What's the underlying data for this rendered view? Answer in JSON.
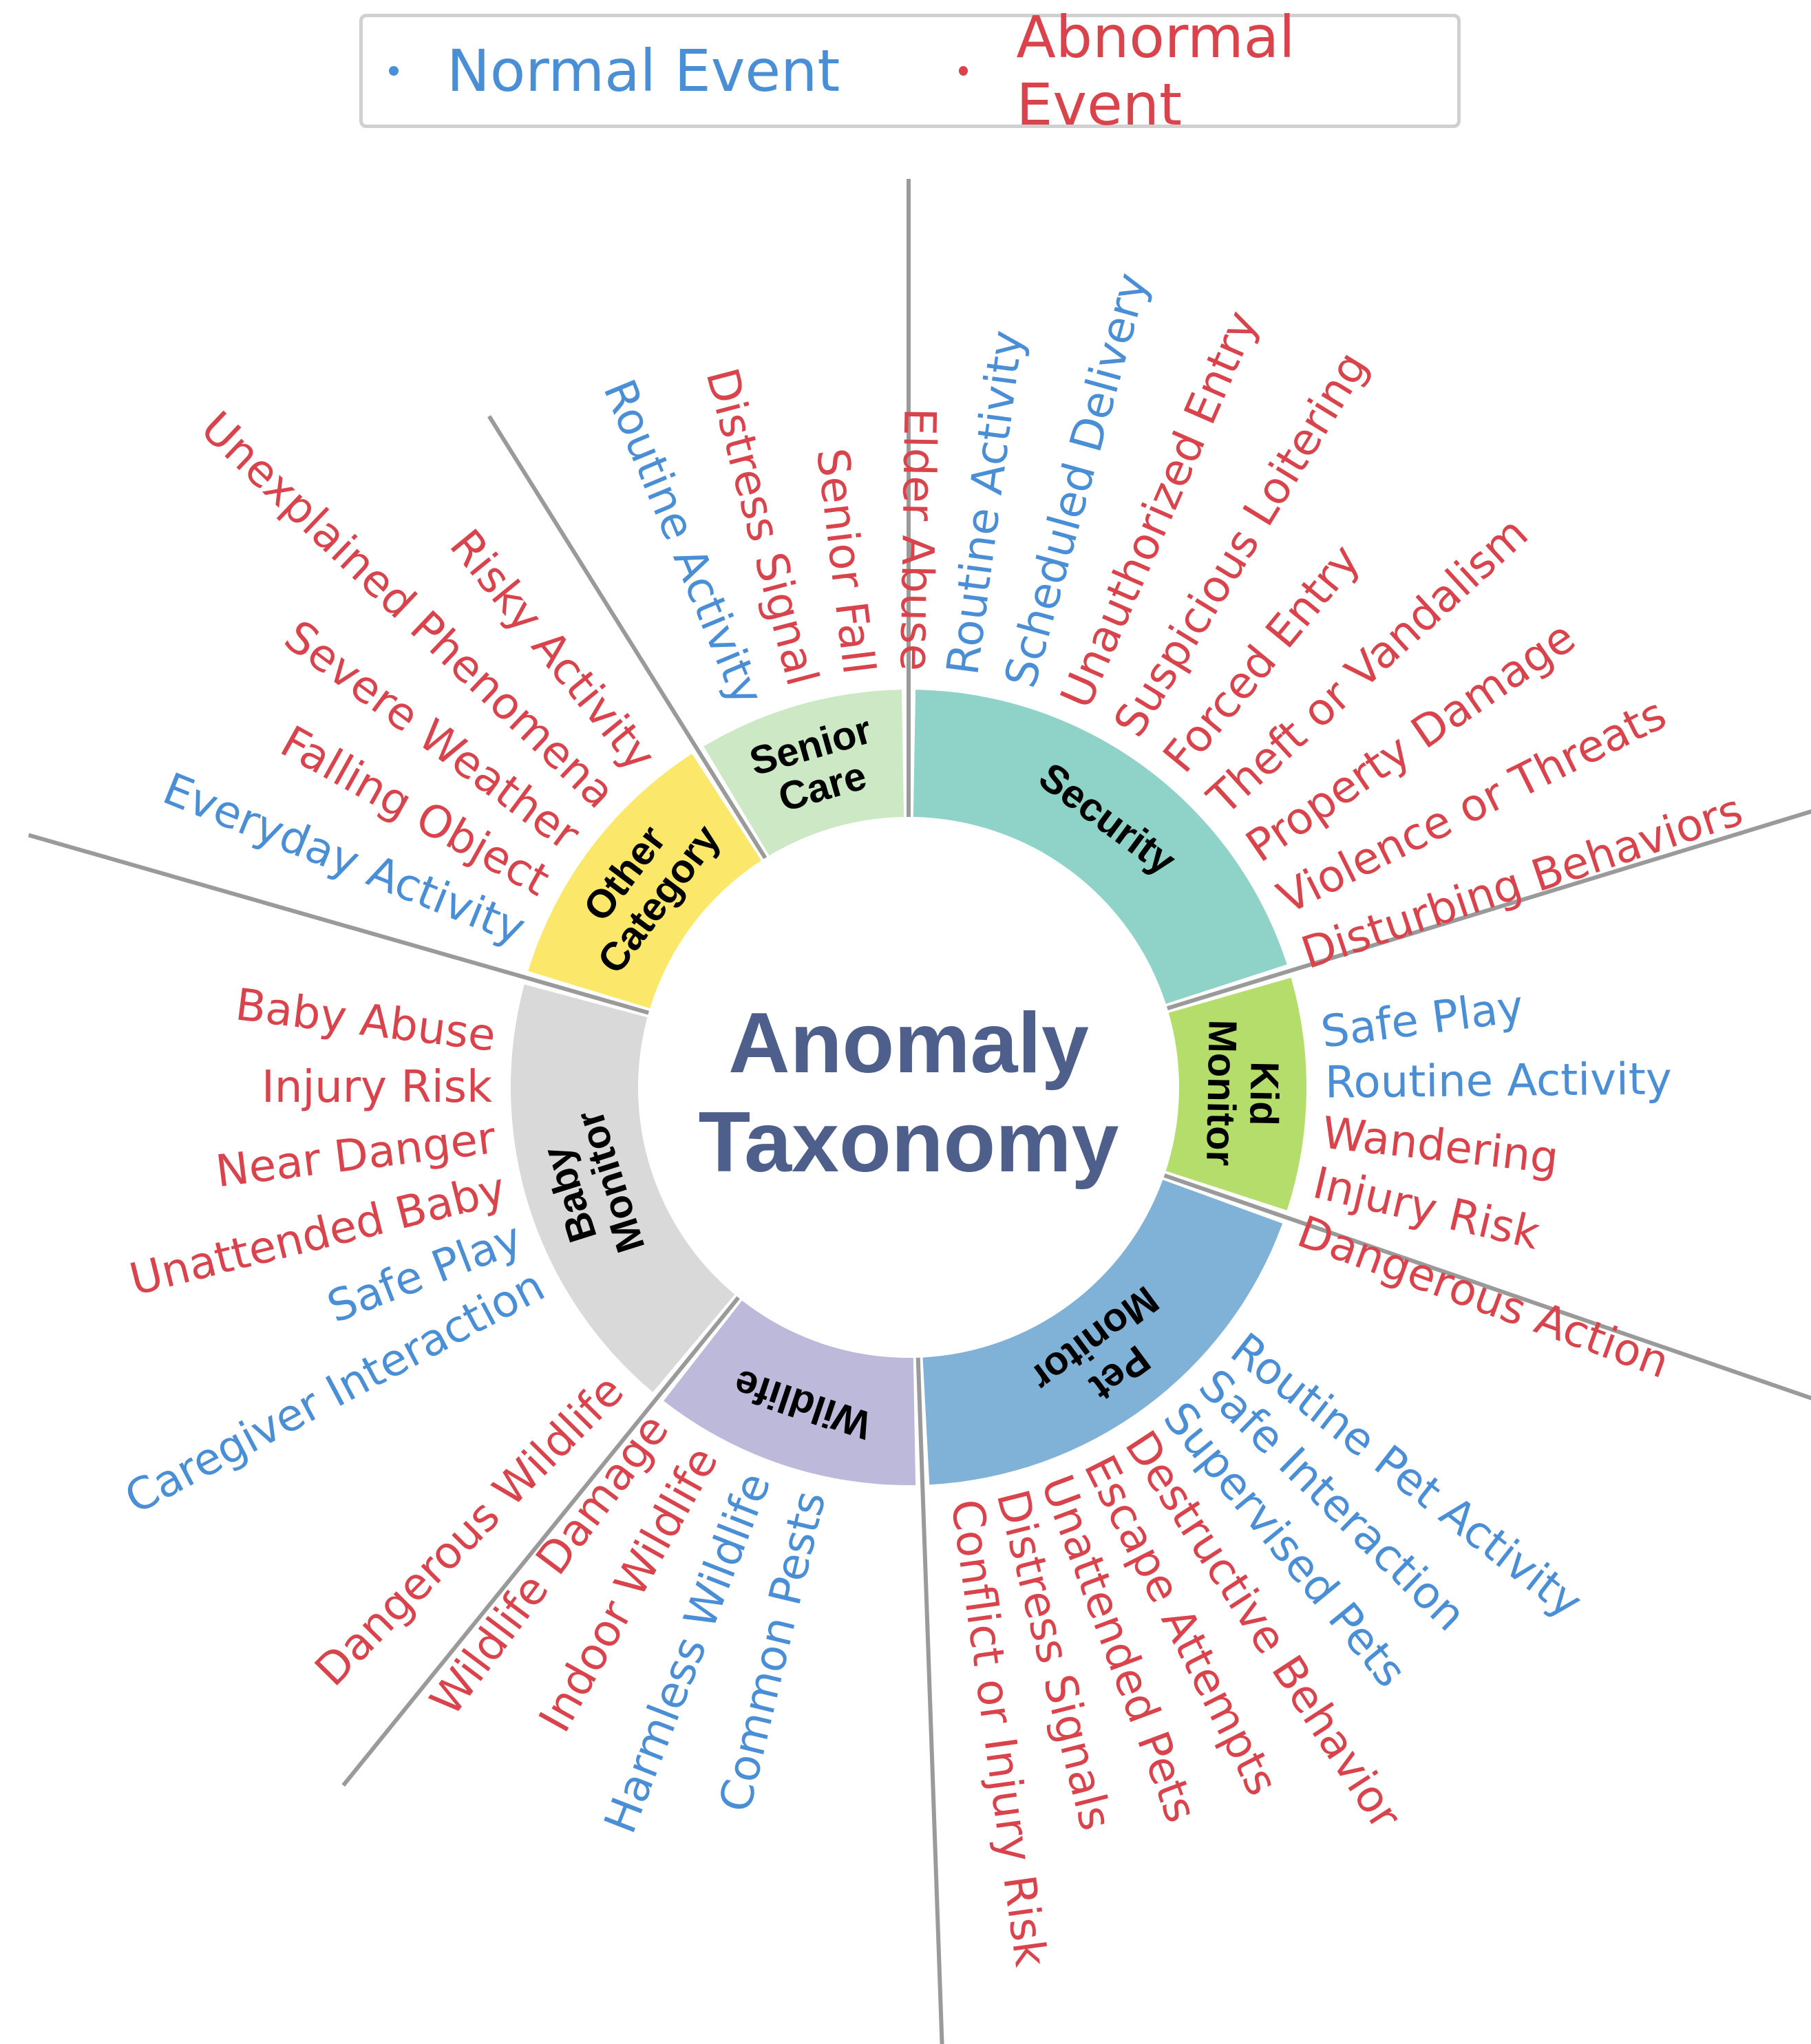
{
  "title": [
    "Anomaly",
    "Taxonomy"
  ],
  "colors": {
    "normal": "#4a8fd6",
    "abnormal": "#d9434b",
    "title": "#4f5f8c",
    "divider": "#9a9a9a"
  },
  "legend": {
    "normal_label": "Normal Event",
    "abnormal_label": "Abnormal Event"
  },
  "categories": [
    {
      "id": "senior-care",
      "label": [
        "Senior",
        "Care"
      ],
      "color": "#cce8c5",
      "items": [
        {
          "text": "Routine Activity",
          "kind": "normal"
        },
        {
          "text": "Distress Signal",
          "kind": "abnormal"
        },
        {
          "text": "Senior Fall",
          "kind": "abnormal"
        },
        {
          "text": "Elder Abuse",
          "kind": "abnormal"
        }
      ]
    },
    {
      "id": "security",
      "label": [
        "Security"
      ],
      "color": "#8fd3c8",
      "items": [
        {
          "text": "Routine Activity",
          "kind": "normal"
        },
        {
          "text": "Scheduled Delivery",
          "kind": "normal"
        },
        {
          "text": "Unauthorized Entry",
          "kind": "abnormal"
        },
        {
          "text": "Suspicious Loitering",
          "kind": "abnormal"
        },
        {
          "text": "Forced Entry",
          "kind": "abnormal"
        },
        {
          "text": "Theft or Vandalism",
          "kind": "abnormal"
        },
        {
          "text": "Property Damage",
          "kind": "abnormal"
        },
        {
          "text": "Violence or Threats",
          "kind": "abnormal"
        },
        {
          "text": "Disturbing Behaviors",
          "kind": "abnormal"
        }
      ]
    },
    {
      "id": "kid-monitor",
      "label": [
        "Kid",
        "Monitor"
      ],
      "color": "#b4dd6c",
      "items": [
        {
          "text": "Safe Play",
          "kind": "normal"
        },
        {
          "text": "Routine Activity",
          "kind": "normal"
        },
        {
          "text": "Wandering",
          "kind": "abnormal"
        },
        {
          "text": "Injury Risk",
          "kind": "abnormal"
        },
        {
          "text": "Dangerous Action",
          "kind": "abnormal"
        }
      ]
    },
    {
      "id": "pet-monitor",
      "label": [
        "Pet",
        "Monitor"
      ],
      "color": "#80b1d6",
      "items": [
        {
          "text": "Routine Pet Activity",
          "kind": "normal"
        },
        {
          "text": "Safe Interaction",
          "kind": "normal"
        },
        {
          "text": "Supervised Pets",
          "kind": "normal"
        },
        {
          "text": "Destructive Behavior",
          "kind": "abnormal"
        },
        {
          "text": "Escape Attempts",
          "kind": "abnormal"
        },
        {
          "text": "Unattended Pets",
          "kind": "abnormal"
        },
        {
          "text": "Distress Signals",
          "kind": "abnormal"
        },
        {
          "text": "Conflict or Injury Risk",
          "kind": "abnormal"
        }
      ]
    },
    {
      "id": "wildlife",
      "label": [
        "Wildlife"
      ],
      "color": "#bcb9da",
      "items": [
        {
          "text": "Common Pests",
          "kind": "normal"
        },
        {
          "text": "Harmless Wildlife",
          "kind": "normal"
        },
        {
          "text": "Indoor Wildlife",
          "kind": "abnormal"
        },
        {
          "text": "Wildlife Damage",
          "kind": "abnormal"
        },
        {
          "text": "Dangerous Wildlife",
          "kind": "abnormal"
        }
      ]
    },
    {
      "id": "baby-monitor",
      "label": [
        "Baby",
        "Monitor"
      ],
      "color": "#d9d9d9",
      "items": [
        {
          "text": "Caregiver Interaction",
          "kind": "normal"
        },
        {
          "text": "Safe Play",
          "kind": "normal"
        },
        {
          "text": "Unattended Baby",
          "kind": "abnormal"
        },
        {
          "text": "Near Danger",
          "kind": "abnormal"
        },
        {
          "text": "Injury Risk",
          "kind": "abnormal"
        },
        {
          "text": "Baby Abuse",
          "kind": "abnormal"
        }
      ]
    },
    {
      "id": "other-category",
      "label": [
        "Other",
        "Category"
      ],
      "color": "#fbe86a",
      "items": [
        {
          "text": "Everyday Activity",
          "kind": "normal"
        },
        {
          "text": "Falling Object",
          "kind": "abnormal"
        },
        {
          "text": "Severe Weather",
          "kind": "abnormal"
        },
        {
          "text": "Unexplained Phenomena",
          "kind": "abnormal"
        },
        {
          "text": "Risky Activity",
          "kind": "abnormal"
        }
      ]
    }
  ]
}
